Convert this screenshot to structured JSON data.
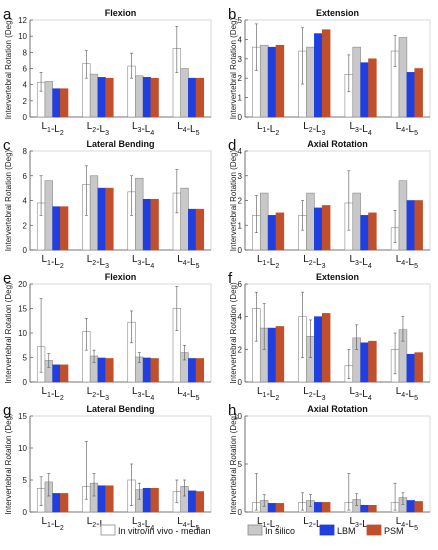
{
  "shared_y_title": "Intervertebral Rotation (Deg)",
  "legend": {
    "items": [
      {
        "label": "In vitro/in vivo - median",
        "color": "#ffffff"
      },
      {
        "label": "In silico",
        "color": "#c8c8c8"
      },
      {
        "label": "LBM",
        "color": "#1f3fe0"
      },
      {
        "label": "PSM",
        "color": "#c0502b"
      }
    ]
  },
  "chart_data": [
    {
      "panel": "a",
      "type": "bar",
      "title": "Flexion",
      "ylabel": "Intervertebral Rotation (Deg)",
      "ylim": [
        0,
        12
      ],
      "yticks": [
        0,
        2,
        4,
        6,
        8,
        10,
        12
      ],
      "categories": [
        "L1-L2",
        "L2-L3",
        "L3-L4",
        "L4-L5"
      ],
      "series": [
        {
          "name": "In vitro/in vivo - median",
          "values": [
            4.3,
            6.6,
            6.3,
            8.5
          ],
          "err": [
            [
              3.2,
              5.5
            ],
            [
              4.8,
              8.2
            ],
            [
              4.8,
              7.9
            ],
            [
              5.5,
              11.2
            ]
          ]
        },
        {
          "name": "In silico",
          "values": [
            4.4,
            5.3,
            5.1,
            6.0
          ]
        },
        {
          "name": "LBM",
          "values": [
            3.5,
            4.9,
            4.9,
            4.8
          ]
        },
        {
          "name": "PSM",
          "values": [
            3.5,
            4.8,
            4.8,
            4.8
          ]
        }
      ]
    },
    {
      "panel": "b",
      "type": "bar",
      "title": "Extension",
      "ylabel": "Intervertebral Rotation (Deg)",
      "ylim": [
        0,
        5
      ],
      "yticks": [
        0,
        1,
        2,
        3,
        4,
        5
      ],
      "categories": [
        "L1-L2",
        "L2-L3",
        "L3-L4",
        "L4-L5"
      ],
      "series": [
        {
          "name": "In vitro/in vivo - median",
          "values": [
            3.6,
            3.4,
            2.2,
            3.4
          ],
          "err": [
            [
              2.4,
              4.8
            ],
            [
              1.7,
              4.6
            ],
            [
              1.3,
              3.2
            ],
            [
              2.6,
              4.2
            ]
          ]
        },
        {
          "name": "In silico",
          "values": [
            3.7,
            3.6,
            3.6,
            4.1
          ]
        },
        {
          "name": "LBM",
          "values": [
            3.6,
            4.3,
            2.8,
            2.3
          ]
        },
        {
          "name": "PSM",
          "values": [
            3.7,
            4.5,
            3.0,
            2.5
          ]
        }
      ]
    },
    {
      "panel": "c",
      "type": "bar",
      "title": "Lateral Bending",
      "ylabel": "Intervertebral Rotation (Deg)",
      "ylim": [
        0,
        8
      ],
      "yticks": [
        0,
        2,
        4,
        6,
        8
      ],
      "categories": [
        "L1-L2",
        "L2-L3",
        "L3-L4",
        "L4-L5"
      ],
      "series": [
        {
          "name": "In vitro/in vivo - median",
          "values": [
            3.8,
            5.3,
            4.7,
            4.6
          ],
          "err": [
            [
              2.8,
              6.0
            ],
            [
              2.8,
              6.8
            ],
            [
              2.8,
              6.0
            ],
            [
              3.0,
              6.5
            ]
          ]
        },
        {
          "name": "In silico",
          "values": [
            5.6,
            6.0,
            5.8,
            5.0
          ]
        },
        {
          "name": "LBM",
          "values": [
            3.5,
            5.0,
            4.1,
            3.3
          ]
        },
        {
          "name": "PSM",
          "values": [
            3.5,
            5.0,
            4.1,
            3.3
          ]
        }
      ]
    },
    {
      "panel": "d",
      "type": "bar",
      "title": "Axial Rotation",
      "ylabel": "Intervertebral Rotation (Deg)",
      "ylim": [
        0,
        4
      ],
      "yticks": [
        0,
        1,
        2,
        3,
        4
      ],
      "categories": [
        "L1-L2",
        "L2-L3",
        "L3-L4",
        "L4-L5"
      ],
      "series": [
        {
          "name": "In vitro/in vivo - median",
          "values": [
            1.4,
            1.4,
            1.9,
            0.9
          ],
          "err": [
            [
              0.7,
              2.2
            ],
            [
              0.8,
              2.0
            ],
            [
              0.8,
              3.2
            ],
            [
              0.3,
              1.6
            ]
          ]
        },
        {
          "name": "In silico",
          "values": [
            2.3,
            2.3,
            2.3,
            2.8
          ]
        },
        {
          "name": "LBM",
          "values": [
            1.4,
            1.7,
            1.4,
            2.0
          ]
        },
        {
          "name": "PSM",
          "values": [
            1.5,
            1.8,
            1.5,
            2.0
          ]
        }
      ]
    },
    {
      "panel": "e",
      "type": "bar",
      "title": "Flexion",
      "ylabel": "Intervertebral Rotation (Deg)",
      "ylim": [
        0,
        20
      ],
      "yticks": [
        0,
        5,
        10,
        15,
        20
      ],
      "categories": [
        "L1-L2",
        "L2-L3",
        "L3-L4",
        "L4-L5"
      ],
      "series": [
        {
          "name": "In vitro/in vivo - median",
          "values": [
            7.2,
            10.3,
            12.2,
            15.0
          ],
          "err": [
            [
              2.0,
              17.0
            ],
            [
              6.5,
              13.0
            ],
            [
              8.0,
              14.5
            ],
            [
              10.5,
              19.5
            ]
          ]
        },
        {
          "name": "In silico",
          "values": [
            4.4,
            5.3,
            5.1,
            6.0
          ],
          "err": [
            [
              3.0,
              5.8
            ],
            [
              4.0,
              6.5
            ],
            [
              4.0,
              6.0
            ],
            [
              4.5,
              7.5
            ]
          ]
        },
        {
          "name": "LBM",
          "values": [
            3.5,
            4.9,
            4.9,
            4.8
          ]
        },
        {
          "name": "PSM",
          "values": [
            3.5,
            4.8,
            4.8,
            4.8
          ]
        }
      ]
    },
    {
      "panel": "f",
      "type": "bar",
      "title": "Extension",
      "ylabel": "Intervertebral Rotation (Deg)",
      "ylim": [
        0,
        6
      ],
      "yticks": [
        0,
        2,
        4,
        6
      ],
      "categories": [
        "L1-L2",
        "L2-L3",
        "L3-L4",
        "L4-L5"
      ],
      "series": [
        {
          "name": "In vitro/in vivo - median",
          "values": [
            4.5,
            4.0,
            1.0,
            2.0
          ],
          "err": [
            [
              2.5,
              5.5
            ],
            [
              1.5,
              5.5
            ],
            [
              0.2,
              2.0
            ],
            [
              0.5,
              3.0
            ]
          ]
        },
        {
          "name": "In silico",
          "values": [
            3.3,
            2.8,
            2.7,
            3.2
          ],
          "err": [
            [
              2.0,
              4.8
            ],
            [
              1.5,
              3.8
            ],
            [
              2.0,
              3.5
            ],
            [
              2.5,
              4.0
            ]
          ]
        },
        {
          "name": "LBM",
          "values": [
            3.3,
            4.0,
            2.4,
            1.7
          ]
        },
        {
          "name": "PSM",
          "values": [
            3.4,
            4.2,
            2.5,
            1.8
          ]
        }
      ]
    },
    {
      "panel": "g",
      "type": "bar",
      "title": "Lateral Bending",
      "ylabel": "Intervertebral Rotation (Deg)",
      "ylim": [
        0,
        15
      ],
      "yticks": [
        0,
        5,
        10,
        15
      ],
      "categories": [
        "L1-L2",
        "L2-L3",
        "L3-L4",
        "L4-L5"
      ],
      "series": [
        {
          "name": "In vitro/in vivo - median",
          "values": [
            3.7,
            4.0,
            5.0,
            3.2
          ],
          "err": [
            [
              1.0,
              5.5
            ],
            [
              2.0,
              11.0
            ],
            [
              1.0,
              7.5
            ],
            [
              1.5,
              5.0
            ]
          ]
        },
        {
          "name": "In silico",
          "values": [
            4.7,
            4.5,
            3.5,
            4.0
          ],
          "err": [
            [
              2.5,
              6.0
            ],
            [
              2.5,
              6.0
            ],
            [
              2.0,
              4.5
            ],
            [
              2.5,
              5.0
            ]
          ]
        },
        {
          "name": "LBM",
          "values": [
            2.9,
            4.1,
            3.7,
            3.3
          ]
        },
        {
          "name": "PSM",
          "values": [
            2.9,
            4.1,
            3.7,
            3.2
          ]
        }
      ]
    },
    {
      "panel": "h",
      "type": "bar",
      "title": "Axial Rotation",
      "ylabel": "Intervertebral Rotation (Deg)",
      "ylim": [
        0,
        10
      ],
      "yticks": [
        0,
        5,
        10
      ],
      "categories": [
        "L1-L2",
        "L2-L3",
        "L3-L4",
        "L4-L5"
      ],
      "series": [
        {
          "name": "In vitro/in vivo - median",
          "values": [
            1.0,
            1.0,
            1.0,
            1.0
          ],
          "err": [
            [
              0.2,
              4.0
            ],
            [
              0.2,
              2.0
            ],
            [
              0.2,
              4.0
            ],
            [
              0.2,
              3.0
            ]
          ]
        },
        {
          "name": "In silico",
          "values": [
            1.2,
            1.2,
            1.3,
            1.5
          ],
          "err": [
            [
              0.6,
              1.8
            ],
            [
              0.6,
              1.8
            ],
            [
              0.7,
              1.9
            ],
            [
              0.8,
              2.0
            ]
          ]
        },
        {
          "name": "LBM",
          "values": [
            0.9,
            1.0,
            0.7,
            1.2
          ]
        },
        {
          "name": "PSM",
          "values": [
            0.9,
            1.0,
            0.7,
            1.1
          ]
        }
      ]
    }
  ]
}
